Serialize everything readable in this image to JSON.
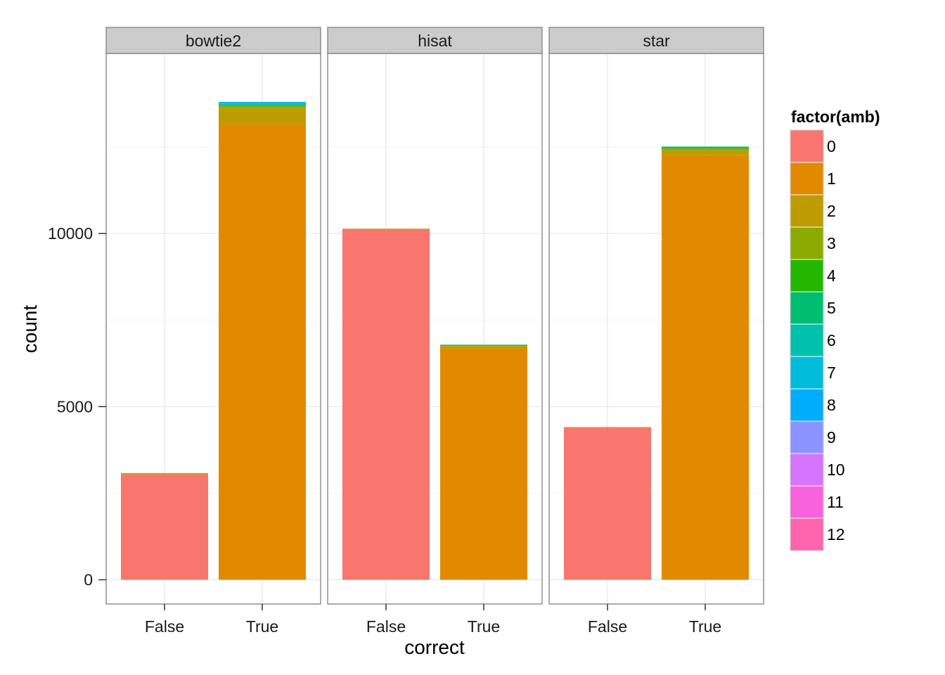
{
  "chart_data": {
    "type": "bar",
    "stacked": true,
    "facet_variable": "aligner",
    "facets": [
      "bowtie2",
      "hisat",
      "star"
    ],
    "categories": [
      "False",
      "True"
    ],
    "xlabel": "correct",
    "ylabel": "count",
    "y_ticks": [
      0,
      5000,
      10000
    ],
    "y_tick_labels": [
      "0",
      "5000",
      "10000"
    ],
    "ylim": [
      -700,
      15200
    ],
    "grid": true,
    "legend": {
      "title": "factor(amb)",
      "placement": "right",
      "levels": [
        "0",
        "1",
        "2",
        "3",
        "4",
        "5",
        "6",
        "7",
        "8",
        "9",
        "10",
        "11",
        "12"
      ],
      "colors": [
        "#F8766D",
        "#E18A00",
        "#BE9C00",
        "#8CAB00",
        "#24B700",
        "#00BE70",
        "#00C1AB",
        "#00BBDA",
        "#00ACFC",
        "#8B93FF",
        "#D575FE",
        "#F962DD",
        "#FF65AC"
      ]
    },
    "panels": [
      {
        "facet": "bowtie2",
        "bars": [
          {
            "category": "False",
            "segments": [
              {
                "amb": "0",
                "value": 3040
              },
              {
                "amb": "2",
                "value": 40
              }
            ]
          },
          {
            "category": "True",
            "segments": [
              {
                "amb": "1",
                "value": 13150
              },
              {
                "amb": "2",
                "value": 470
              },
              {
                "amb": "3",
                "value": 60
              },
              {
                "amb": "4",
                "value": 15
              },
              {
                "amb": "5",
                "value": 30
              },
              {
                "amb": "6",
                "value": 20
              },
              {
                "amb": "7",
                "value": 25
              },
              {
                "amb": "8",
                "value": 30
              }
            ]
          }
        ]
      },
      {
        "facet": "hisat",
        "bars": [
          {
            "category": "False",
            "segments": [
              {
                "amb": "0",
                "value": 10120
              },
              {
                "amb": "2",
                "value": 20
              }
            ]
          },
          {
            "category": "True",
            "segments": [
              {
                "amb": "1",
                "value": 6680
              },
              {
                "amb": "2",
                "value": 70
              },
              {
                "amb": "3",
                "value": 25
              },
              {
                "amb": "5",
                "value": 15
              }
            ]
          }
        ]
      },
      {
        "facet": "star",
        "bars": [
          {
            "category": "False",
            "segments": [
              {
                "amb": "0",
                "value": 4390
              },
              {
                "amb": "2",
                "value": 20
              }
            ]
          },
          {
            "category": "True",
            "segments": [
              {
                "amb": "1",
                "value": 12270
              },
              {
                "amb": "2",
                "value": 130
              },
              {
                "amb": "3",
                "value": 60
              },
              {
                "amb": "5",
                "value": 50
              }
            ]
          }
        ]
      }
    ]
  }
}
